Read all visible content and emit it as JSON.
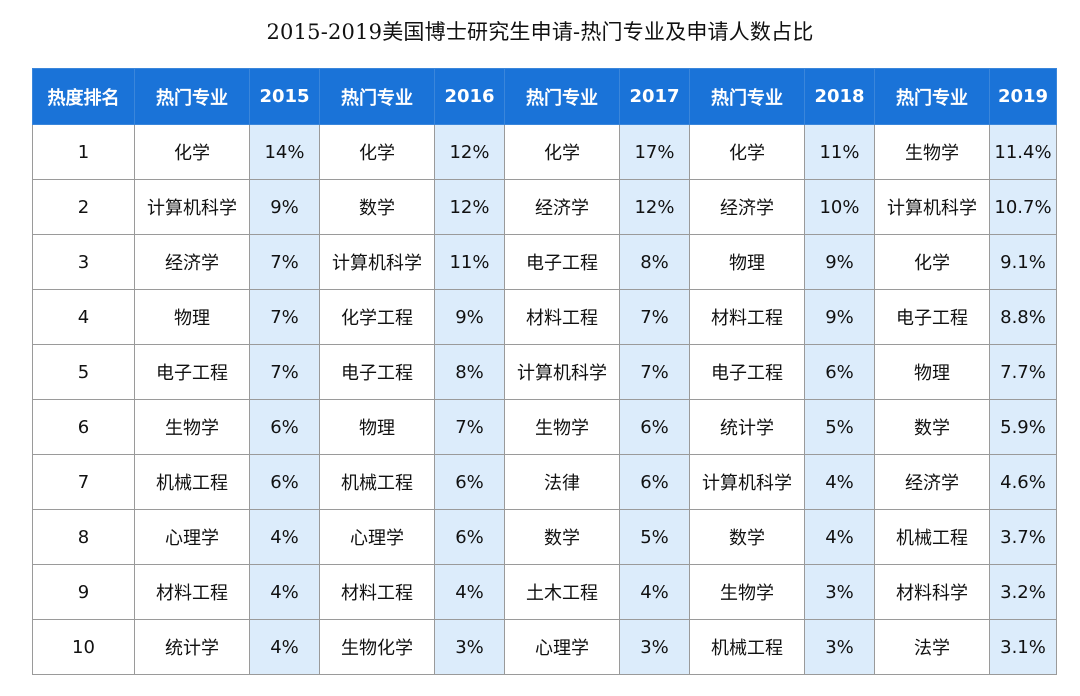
{
  "title": "2015-2019美国博士研究生申请-热门专业及申请人数占比",
  "accent_color": "#1a73d8",
  "header": {
    "rank_label": "热度排名",
    "columns": [
      {
        "major_label": "热门专业",
        "year": "2015"
      },
      {
        "major_label": "热门专业",
        "year": "2016"
      },
      {
        "major_label": "热门专业",
        "year": "2017"
      },
      {
        "major_label": "热门专业",
        "year": "2018"
      },
      {
        "major_label": "热门专业",
        "year": "2019"
      }
    ]
  },
  "rows": [
    {
      "rank": "1",
      "cells": [
        {
          "major": "化学",
          "pct": "14%"
        },
        {
          "major": "化学",
          "pct": "12%"
        },
        {
          "major": "化学",
          "pct": "17%"
        },
        {
          "major": "化学",
          "pct": "11%"
        },
        {
          "major": "生物学",
          "pct": "11.4%"
        }
      ]
    },
    {
      "rank": "2",
      "cells": [
        {
          "major": "计算机科学",
          "pct": "9%"
        },
        {
          "major": "数学",
          "pct": "12%"
        },
        {
          "major": "经济学",
          "pct": "12%"
        },
        {
          "major": "经济学",
          "pct": "10%"
        },
        {
          "major": "计算机科学",
          "pct": "10.7%"
        }
      ]
    },
    {
      "rank": "3",
      "cells": [
        {
          "major": "经济学",
          "pct": "7%"
        },
        {
          "major": "计算机科学",
          "pct": "11%"
        },
        {
          "major": "电子工程",
          "pct": "8%"
        },
        {
          "major": "物理",
          "pct": "9%"
        },
        {
          "major": "化学",
          "pct": "9.1%"
        }
      ]
    },
    {
      "rank": "4",
      "cells": [
        {
          "major": "物理",
          "pct": "7%"
        },
        {
          "major": "化学工程",
          "pct": "9%"
        },
        {
          "major": "材料工程",
          "pct": "7%"
        },
        {
          "major": "材料工程",
          "pct": "9%"
        },
        {
          "major": "电子工程",
          "pct": "8.8%"
        }
      ]
    },
    {
      "rank": "5",
      "cells": [
        {
          "major": "电子工程",
          "pct": "7%"
        },
        {
          "major": "电子工程",
          "pct": "8%"
        },
        {
          "major": "计算机科学",
          "pct": "7%"
        },
        {
          "major": "电子工程",
          "pct": "6%"
        },
        {
          "major": "物理",
          "pct": "7.7%"
        }
      ]
    },
    {
      "rank": "6",
      "cells": [
        {
          "major": "生物学",
          "pct": "6%"
        },
        {
          "major": "物理",
          "pct": "7%"
        },
        {
          "major": "生物学",
          "pct": "6%"
        },
        {
          "major": "统计学",
          "pct": "5%"
        },
        {
          "major": "数学",
          "pct": "5.9%"
        }
      ]
    },
    {
      "rank": "7",
      "cells": [
        {
          "major": "机械工程",
          "pct": "6%"
        },
        {
          "major": "机械工程",
          "pct": "6%"
        },
        {
          "major": "法律",
          "pct": "6%"
        },
        {
          "major": "计算机科学",
          "pct": "4%"
        },
        {
          "major": "经济学",
          "pct": "4.6%"
        }
      ]
    },
    {
      "rank": "8",
      "cells": [
        {
          "major": "心理学",
          "pct": "4%"
        },
        {
          "major": "心理学",
          "pct": "6%"
        },
        {
          "major": "数学",
          "pct": "5%"
        },
        {
          "major": "数学",
          "pct": "4%"
        },
        {
          "major": "机械工程",
          "pct": "3.7%"
        }
      ]
    },
    {
      "rank": "9",
      "cells": [
        {
          "major": "材料工程",
          "pct": "4%"
        },
        {
          "major": "材料工程",
          "pct": "4%"
        },
        {
          "major": "土木工程",
          "pct": "4%"
        },
        {
          "major": "生物学",
          "pct": "3%"
        },
        {
          "major": "材料科学",
          "pct": "3.2%"
        }
      ]
    },
    {
      "rank": "10",
      "cells": [
        {
          "major": "统计学",
          "pct": "4%"
        },
        {
          "major": "生物化学",
          "pct": "3%"
        },
        {
          "major": "心理学",
          "pct": "3%"
        },
        {
          "major": "机械工程",
          "pct": "3%"
        },
        {
          "major": "法学",
          "pct": "3.1%"
        }
      ]
    }
  ]
}
